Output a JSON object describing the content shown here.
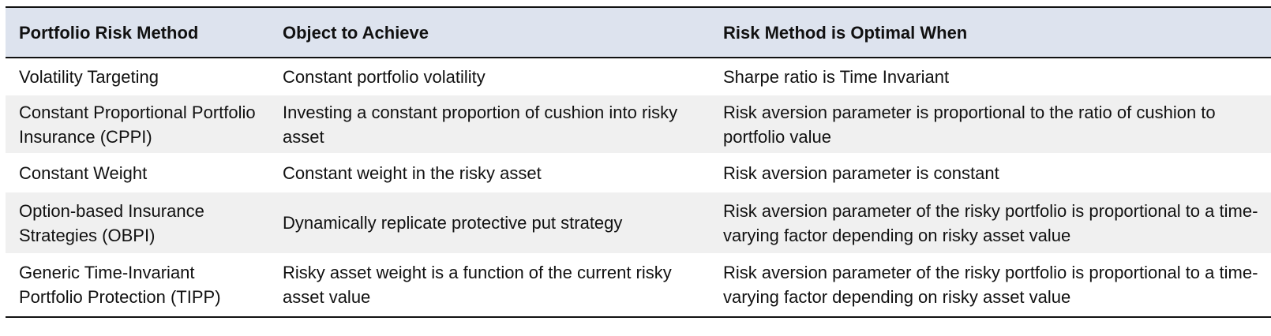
{
  "table": {
    "headers": [
      "Portfolio Risk Method",
      "Object to Achieve",
      "Risk Method is Optimal When"
    ],
    "rows": [
      {
        "method": "Volatility Targeting",
        "objective": "Constant portfolio volatility",
        "optimal_when": "Sharpe ratio is Time Invariant"
      },
      {
        "method": "Constant Proportional Portfolio Insurance (CPPI)",
        "objective": "Investing a constant proportion of cushion into risky asset",
        "optimal_when": "Risk aversion parameter is proportional to the ratio of cushion to portfolio value"
      },
      {
        "method": "Constant Weight",
        "objective": "Constant weight in the risky asset",
        "optimal_when": "Risk aversion parameter is constant"
      },
      {
        "method": "Option-based Insurance Strategies (OBPI)",
        "objective": "Dynamically replicate protective put strategy",
        "optimal_when": "Risk aversion parameter of the risky portfolio is proportional to a time-varying factor depending on risky asset value"
      },
      {
        "method": "Generic Time-Invariant Portfolio Protection (TIPP)",
        "objective": "Risky asset weight is a function of the current risky asset value",
        "optimal_when": "Risk aversion parameter of the risky portfolio is proportional to a time-varying factor depending on risky asset value"
      }
    ]
  },
  "colors": {
    "header_background": "#dde3ee",
    "alternate_row_background": "#f0f0f0",
    "rule_color": "#111111"
  }
}
